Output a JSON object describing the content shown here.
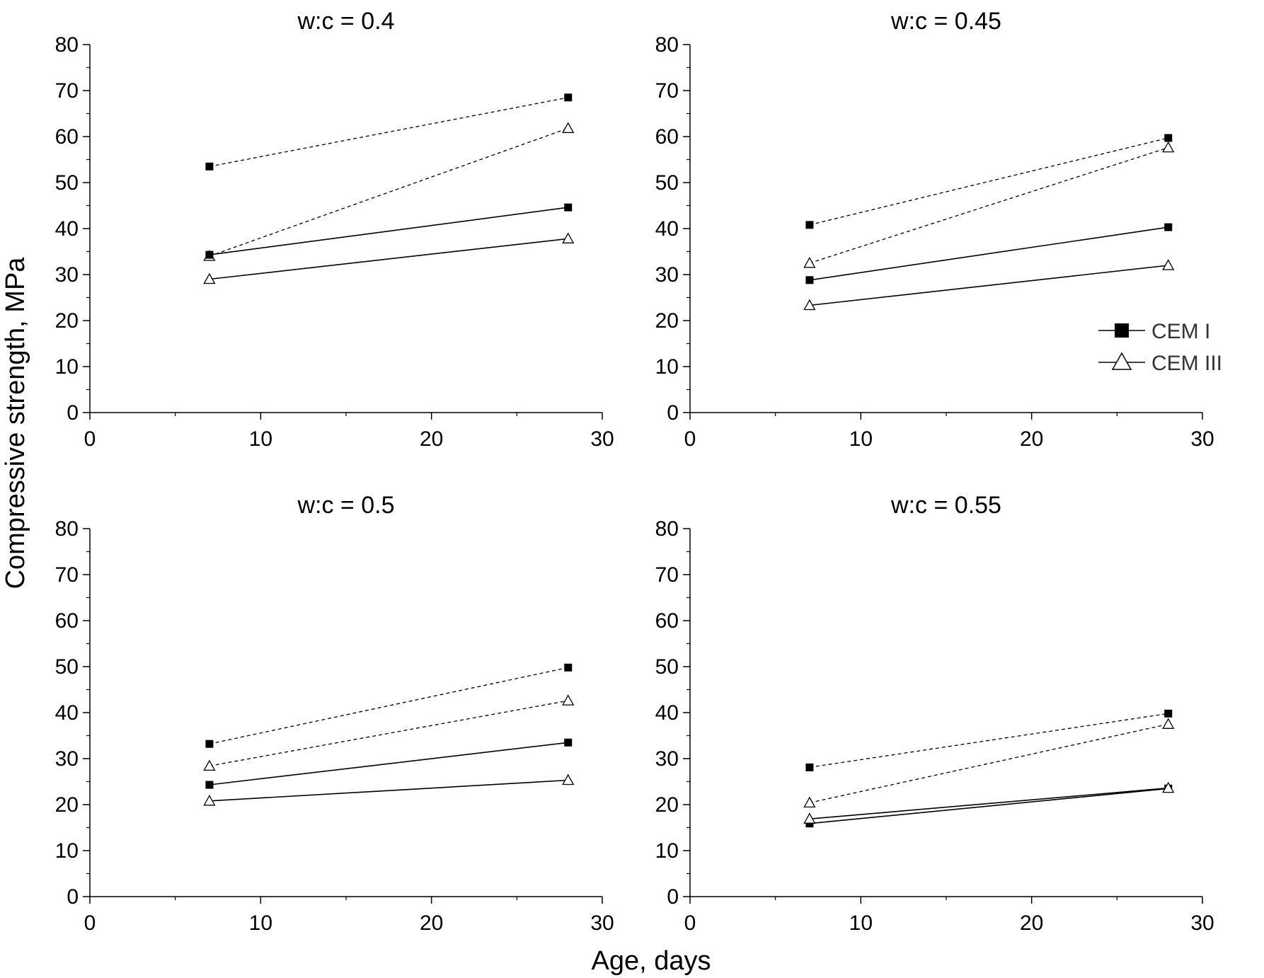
{
  "figure": {
    "ylabel": "Compressive strength, MPa",
    "xlabel": "Age, days"
  },
  "legend": {
    "placement": "right of top-right panel",
    "items": [
      {
        "label": "CEM I",
        "marker": "filled-square"
      },
      {
        "label": "CEM III",
        "marker": "open-triangle"
      }
    ]
  },
  "chart_data": [
    {
      "type": "line",
      "title": "w:c = 0.4",
      "xlim": [
        0,
        30
      ],
      "ylim": [
        0,
        80
      ],
      "x_ticks": [
        0,
        10,
        20,
        30
      ],
      "y_ticks": [
        0,
        10,
        20,
        30,
        40,
        50,
        60,
        70,
        80
      ],
      "x": [
        7,
        28
      ],
      "series": [
        {
          "marker": "filled-square",
          "line": "dashed",
          "values": [
            53.5,
            68.5
          ]
        },
        {
          "marker": "open-triangle",
          "line": "dashed",
          "values": [
            34.0,
            61.8
          ]
        },
        {
          "marker": "filled-square",
          "line": "solid",
          "values": [
            34.3,
            44.6
          ]
        },
        {
          "marker": "open-triangle",
          "line": "solid",
          "values": [
            29.0,
            37.8
          ]
        }
      ]
    },
    {
      "type": "line",
      "title": "w:c = 0.45",
      "xlim": [
        0,
        30
      ],
      "ylim": [
        0,
        80
      ],
      "x_ticks": [
        0,
        10,
        20,
        30
      ],
      "y_ticks": [
        0,
        10,
        20,
        30,
        40,
        50,
        60,
        70,
        80
      ],
      "x": [
        7,
        28
      ],
      "series": [
        {
          "marker": "filled-square",
          "line": "dashed",
          "values": [
            40.8,
            59.7
          ]
        },
        {
          "marker": "open-triangle",
          "line": "dashed",
          "values": [
            32.5,
            57.6
          ]
        },
        {
          "marker": "filled-square",
          "line": "solid",
          "values": [
            28.8,
            40.3
          ]
        },
        {
          "marker": "open-triangle",
          "line": "solid",
          "values": [
            23.3,
            32.0
          ]
        }
      ]
    },
    {
      "type": "line",
      "title": "w:c = 0.5",
      "xlim": [
        0,
        30
      ],
      "ylim": [
        0,
        80
      ],
      "x_ticks": [
        0,
        10,
        20,
        30
      ],
      "y_ticks": [
        0,
        10,
        20,
        30,
        40,
        50,
        60,
        70,
        80
      ],
      "x": [
        7,
        28
      ],
      "series": [
        {
          "marker": "filled-square",
          "line": "dashed",
          "values": [
            33.2,
            49.8
          ]
        },
        {
          "marker": "open-triangle",
          "line": "dashed",
          "values": [
            28.4,
            42.6
          ]
        },
        {
          "marker": "filled-square",
          "line": "solid",
          "values": [
            24.3,
            33.5
          ]
        },
        {
          "marker": "open-triangle",
          "line": "solid",
          "values": [
            20.8,
            25.3
          ]
        }
      ]
    },
    {
      "type": "line",
      "title": "w:c = 0.55",
      "xlim": [
        0,
        30
      ],
      "ylim": [
        0,
        80
      ],
      "x_ticks": [
        0,
        10,
        20,
        30
      ],
      "y_ticks": [
        0,
        10,
        20,
        30,
        40,
        50,
        60,
        70,
        80
      ],
      "x": [
        7,
        28
      ],
      "series": [
        {
          "marker": "filled-square",
          "line": "dashed",
          "values": [
            28.1,
            39.8
          ]
        },
        {
          "marker": "open-triangle",
          "line": "dashed",
          "values": [
            20.4,
            37.5
          ]
        },
        {
          "marker": "filled-square",
          "line": "solid",
          "values": [
            15.9,
            23.5
          ]
        },
        {
          "marker": "open-triangle",
          "line": "solid",
          "values": [
            16.9,
            23.6
          ]
        }
      ]
    }
  ]
}
